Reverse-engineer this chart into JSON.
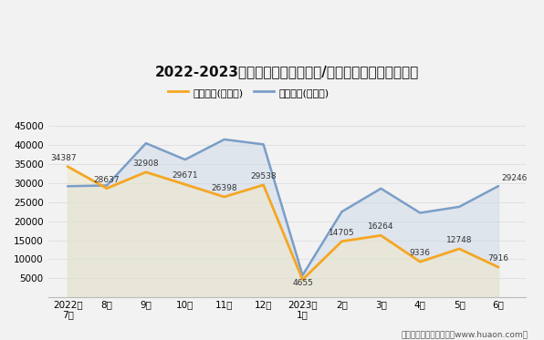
{
  "title": "2022-2023年红河州（境内目的地/货源地）进、出口额统计",
  "x_labels": [
    "2022年\n7月",
    "8月",
    "9月",
    "10月",
    "11月",
    "12月",
    "2023年\n1月",
    "2月",
    "3月",
    "4月",
    "5月",
    "6月"
  ],
  "export_values": [
    34387,
    28637,
    32908,
    29671,
    26398,
    29538,
    4655,
    14705,
    16264,
    9336,
    12748,
    7916
  ],
  "import_values": [
    29200,
    29400,
    40500,
    36200,
    41500,
    40200,
    5800,
    22500,
    28600,
    22200,
    23800,
    29246
  ],
  "export_label": "出口总额(万美元)",
  "import_label": "进口总额(万美元)",
  "export_color": "#F5A623",
  "import_color": "#7B9EC8",
  "import_fill_color": "#C8D6E8",
  "export_fill_color": "#EEE8C8",
  "ylim": [
    0,
    45000
  ],
  "yticks": [
    0,
    5000,
    10000,
    15000,
    20000,
    25000,
    30000,
    35000,
    40000,
    45000
  ],
  "footer": "制图：华经产业研究院（www.huaon.com）",
  "bg_color": "#F2F2F2",
  "annotation_export": [
    34387,
    28637,
    32908,
    29671,
    26398,
    29538,
    4655,
    14705,
    16264,
    9336,
    12748,
    7916
  ],
  "annotation_import_last": 29246
}
